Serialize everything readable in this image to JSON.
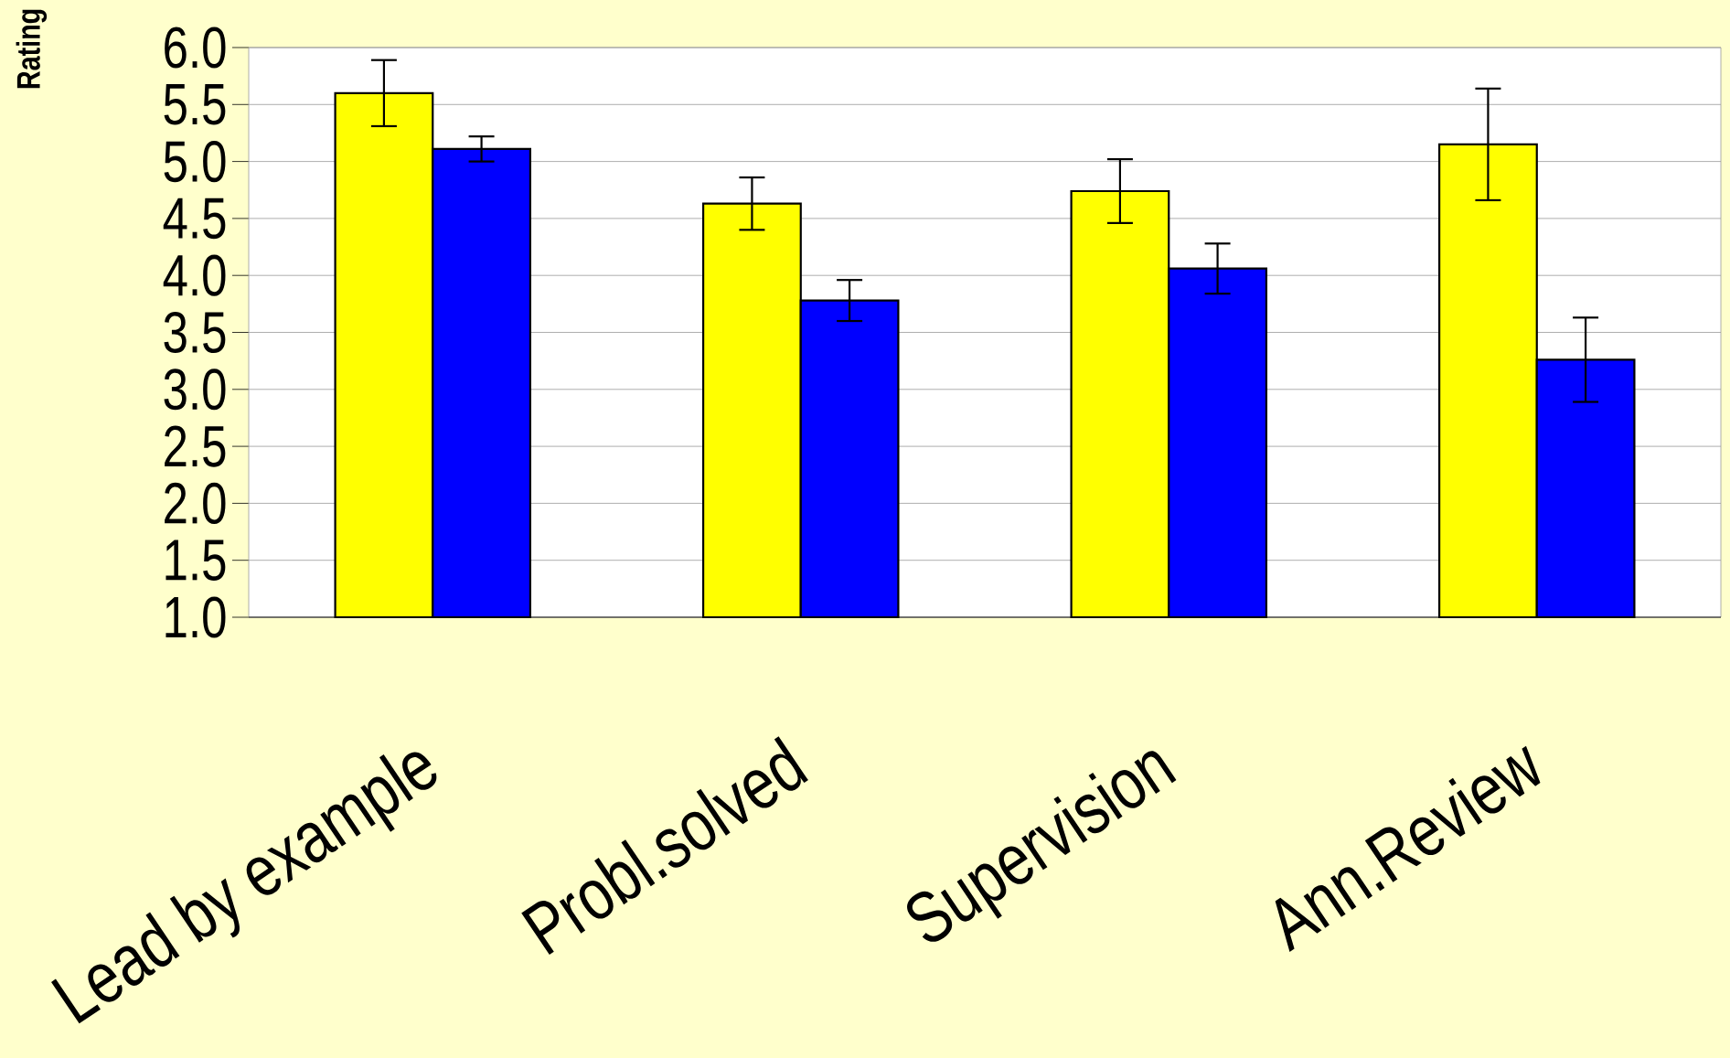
{
  "chart_data": {
    "type": "bar",
    "ylabel": "Rating",
    "categories": [
      "Lead by example",
      "Probl.solved",
      "Supervision",
      "Ann.Review"
    ],
    "series": [
      {
        "color": "#ffff00",
        "values": [
          5.6,
          4.63,
          4.74,
          5.15
        ],
        "errors": [
          0.29,
          0.23,
          0.28,
          0.49
        ]
      },
      {
        "color": "#0000ff",
        "values": [
          5.11,
          3.78,
          4.06,
          3.26
        ],
        "errors": [
          0.11,
          0.18,
          0.22,
          0.37
        ]
      }
    ],
    "ylim": [
      1,
      6
    ],
    "yticks": [
      {
        "value": 1,
        "label": "1.0"
      },
      {
        "value": 1.5,
        "label": "1.5"
      },
      {
        "value": 2,
        "label": "2.0"
      },
      {
        "value": 2.5,
        "label": "2.5"
      },
      {
        "value": 3,
        "label": "3.0"
      },
      {
        "value": 3.5,
        "label": "3.5"
      },
      {
        "value": 4,
        "label": "4.0"
      },
      {
        "value": 4.5,
        "label": "4.5"
      },
      {
        "value": 5,
        "label": "5.0"
      },
      {
        "value": 5.5,
        "label": "5.5"
      },
      {
        "value": 6,
        "label": "6.0"
      }
    ],
    "grid": "y"
  }
}
